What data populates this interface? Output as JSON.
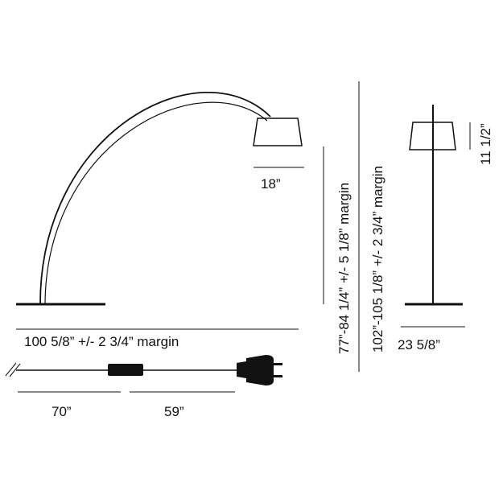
{
  "labels": {
    "shade_width": "18”",
    "total_reach": "100 5/8” +/- 2 3/4” margin",
    "cable_first": "70”",
    "cable_second": "59”",
    "height_low": "77”-84 1/4”  +/- 5 1/8” margin",
    "height_high": "102”-105 1/8”  +/- 2 3/4” margin",
    "shade_height": "11 1/2”",
    "base_width": "23 5/8”"
  }
}
